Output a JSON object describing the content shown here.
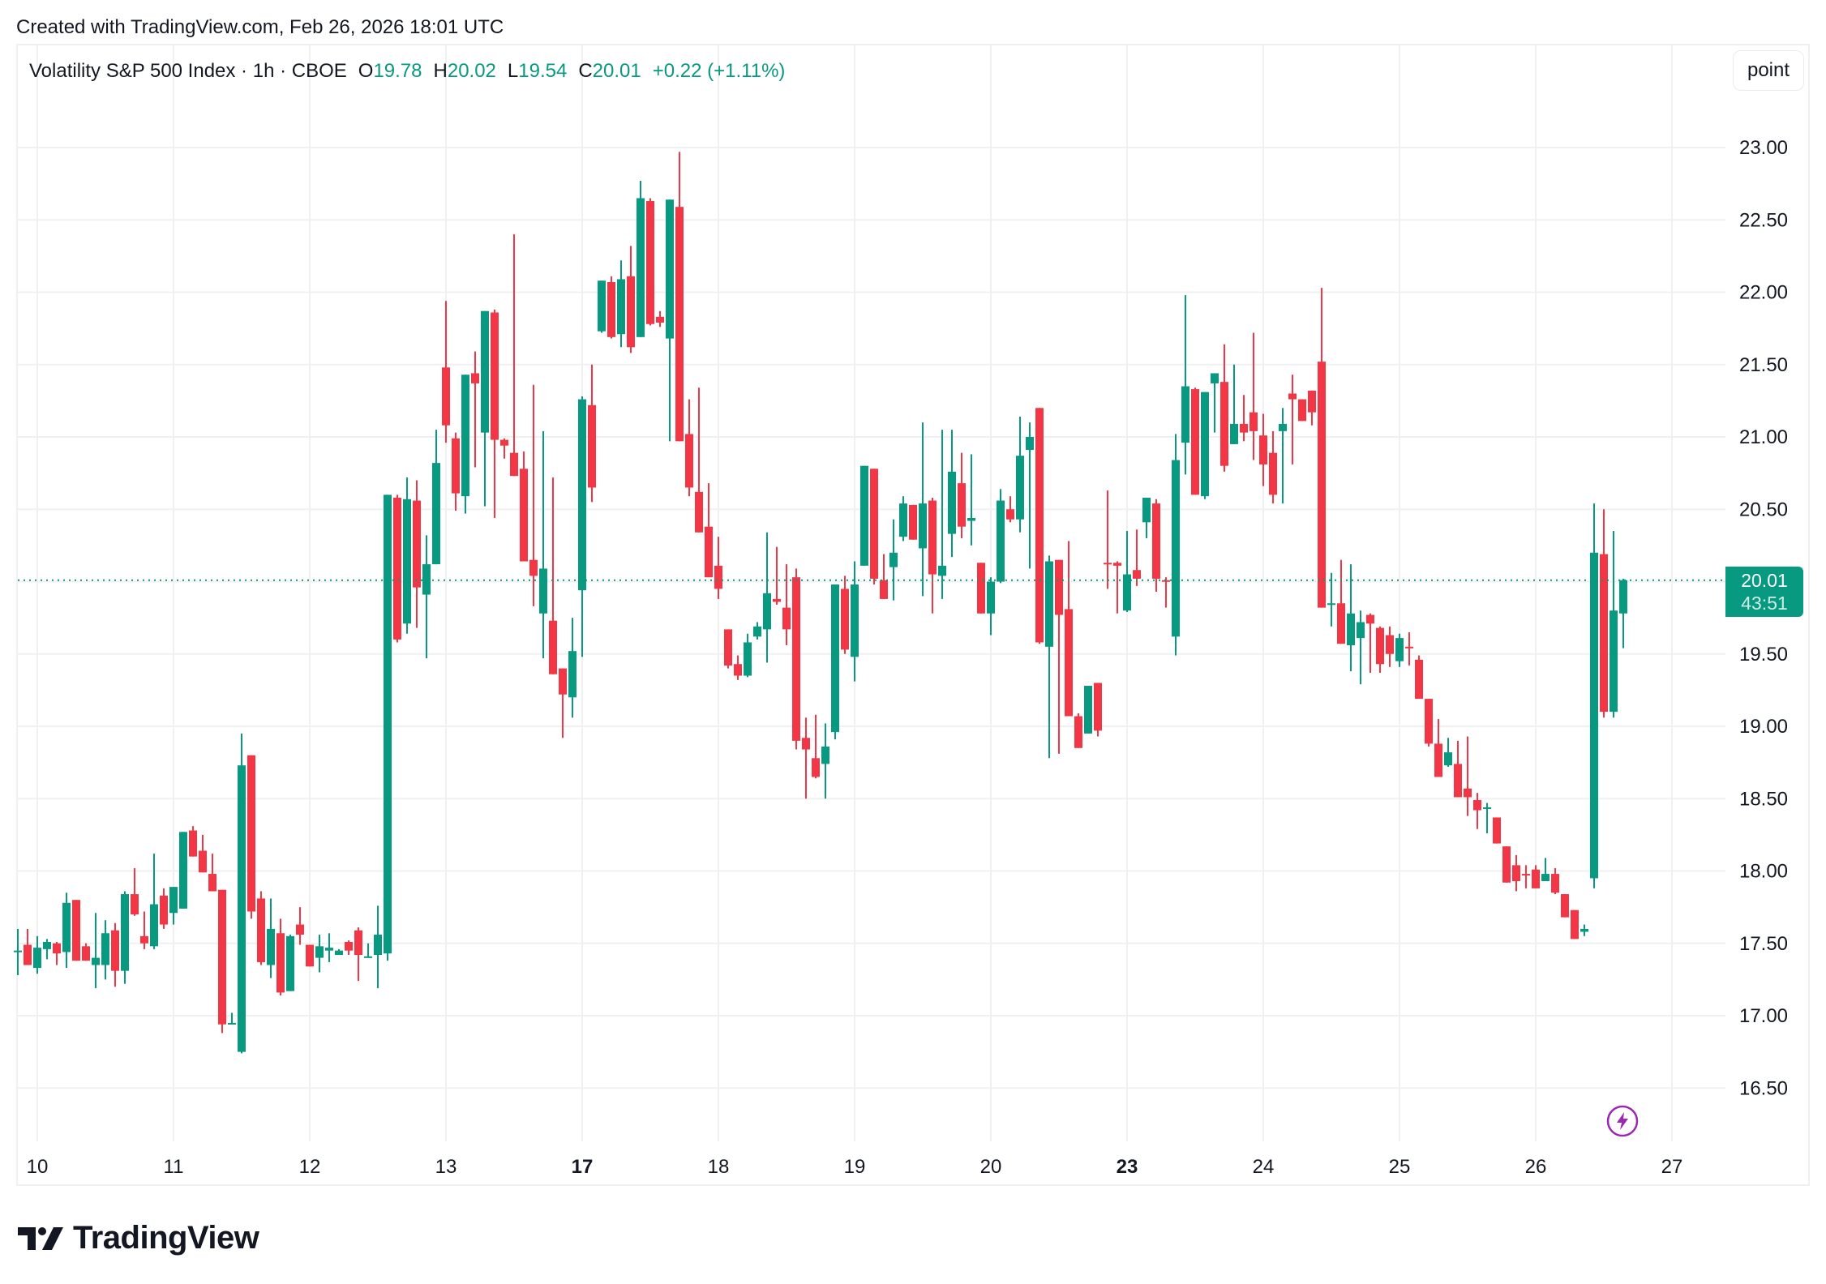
{
  "header": {
    "created_text": "Created with TradingView.com, Feb 26, 2026 18:01 UTC"
  },
  "legend": {
    "symbol": "Volatility S&P 500 Index · 1h · CBOE",
    "open_label": "O",
    "open": "19.78",
    "high_label": "H",
    "high": "20.02",
    "low_label": "L",
    "low": "19.54",
    "close_label": "C",
    "close": "20.01",
    "change": "+0.22 (+1.11%)"
  },
  "unit_button": "point",
  "last_price": {
    "price": "20.01",
    "countdown": "43:51"
  },
  "colors": {
    "up": "#089981",
    "down": "#f23645",
    "grid": "#f0f0f0",
    "text": "#131722",
    "event": "#9c27b0"
  },
  "brand": {
    "name": "TradingView"
  },
  "chart_data": {
    "type": "candlestick",
    "title": "Volatility S&P 500 Index · 1h · CBOE",
    "xlabel": "",
    "ylabel": "",
    "ylim": [
      16.2,
      23.4
    ],
    "y_ticks": [
      "23.00",
      "22.50",
      "22.00",
      "21.50",
      "21.00",
      "20.50",
      "20.00",
      "19.50",
      "19.00",
      "18.50",
      "18.00",
      "17.50",
      "17.00",
      "16.50"
    ],
    "x_ticks": [
      {
        "label": "10",
        "slot": 1,
        "bold": false
      },
      {
        "label": "11",
        "slot": 15,
        "bold": false
      },
      {
        "label": "12",
        "slot": 29,
        "bold": false
      },
      {
        "label": "13",
        "slot": 43,
        "bold": false
      },
      {
        "label": "17",
        "slot": 57,
        "bold": true
      },
      {
        "label": "18",
        "slot": 71,
        "bold": false
      },
      {
        "label": "19",
        "slot": 85,
        "bold": false
      },
      {
        "label": "20",
        "slot": 99,
        "bold": false
      },
      {
        "label": "23",
        "slot": 113,
        "bold": true
      },
      {
        "label": "24",
        "slot": 127,
        "bold": false
      },
      {
        "label": "25",
        "slot": 141,
        "bold": false
      },
      {
        "label": "26",
        "slot": 155,
        "bold": false
      },
      {
        "label": "27",
        "slot": 169,
        "bold": false
      }
    ],
    "last_price_line": 20.01,
    "candles": [
      [
        0,
        17.44,
        17.6,
        17.28,
        17.45
      ],
      [
        1,
        17.49,
        17.6,
        17.36,
        17.35
      ],
      [
        2,
        17.33,
        17.55,
        17.29,
        17.47
      ],
      [
        3,
        17.46,
        17.53,
        17.39,
        17.51
      ],
      [
        4,
        17.5,
        17.51,
        17.35,
        17.43
      ],
      [
        5,
        17.44,
        17.85,
        17.33,
        17.78
      ],
      [
        6,
        17.8,
        17.8,
        17.38,
        17.38
      ],
      [
        7,
        17.48,
        17.5,
        17.38,
        17.38
      ],
      [
        8,
        17.35,
        17.71,
        17.19,
        17.4
      ],
      [
        9,
        17.35,
        17.66,
        17.25,
        17.57
      ],
      [
        10,
        17.59,
        17.64,
        17.2,
        17.31
      ],
      [
        11,
        17.31,
        17.86,
        17.22,
        17.84
      ],
      [
        12,
        17.84,
        18.02,
        17.69,
        17.7
      ],
      [
        13,
        17.55,
        17.72,
        17.46,
        17.5
      ],
      [
        14,
        17.48,
        18.12,
        17.46,
        17.77
      ],
      [
        15,
        17.83,
        17.88,
        17.6,
        17.63
      ],
      [
        16,
        17.71,
        17.89,
        17.63,
        17.89
      ],
      [
        17,
        17.74,
        18.22,
        17.77,
        18.27
      ],
      [
        18,
        18.28,
        18.31,
        18.1,
        18.1
      ],
      [
        19,
        18.14,
        18.25,
        17.99,
        17.99
      ],
      [
        20,
        17.98,
        18.12,
        17.86,
        17.86
      ],
      [
        21,
        17.87,
        17.87,
        16.88,
        16.94
      ],
      [
        22,
        16.94,
        17.02,
        16.94,
        16.95
      ],
      [
        23,
        16.75,
        18.95,
        16.74,
        18.73
      ],
      [
        24,
        18.8,
        18.8,
        17.67,
        17.72
      ],
      [
        25,
        17.81,
        17.86,
        17.35,
        17.37
      ],
      [
        26,
        17.35,
        17.81,
        17.26,
        17.6
      ],
      [
        27,
        17.57,
        17.67,
        17.14,
        17.16
      ],
      [
        28,
        17.17,
        17.56,
        17.17,
        17.55
      ],
      [
        29,
        17.63,
        17.75,
        17.49,
        17.56
      ],
      [
        30,
        17.49,
        17.49,
        17.36,
        17.34
      ],
      [
        31,
        17.4,
        17.56,
        17.3,
        17.48
      ],
      [
        32,
        17.45,
        17.57,
        17.37,
        17.47
      ],
      [
        33,
        17.42,
        17.46,
        17.45,
        17.45
      ],
      [
        34,
        17.51,
        17.52,
        17.42,
        17.45
      ],
      [
        35,
        17.59,
        17.61,
        17.24,
        17.42
      ],
      [
        36,
        17.4,
        17.5,
        17.41,
        17.41
      ],
      [
        37,
        17.42,
        17.76,
        17.19,
        17.56
      ],
      [
        38,
        17.43,
        20.56,
        17.38,
        20.6
      ],
      [
        39,
        20.58,
        20.6,
        19.58,
        19.6
      ],
      [
        40,
        19.71,
        20.72,
        19.64,
        20.57
      ],
      [
        41,
        20.56,
        20.7,
        19.68,
        19.96
      ],
      [
        42,
        19.91,
        20.32,
        19.47,
        20.12
      ],
      [
        43,
        20.12,
        21.05,
        20.12,
        20.82
      ],
      [
        44,
        21.48,
        21.94,
        20.96,
        21.08
      ],
      [
        45,
        20.99,
        21.03,
        20.49,
        20.61
      ],
      [
        46,
        20.59,
        21.28,
        20.47,
        21.43
      ],
      [
        47,
        21.44,
        21.59,
        20.79,
        21.37
      ],
      [
        48,
        21.03,
        21.87,
        20.52,
        21.87
      ],
      [
        49,
        21.86,
        21.88,
        20.44,
        20.98
      ],
      [
        50,
        20.98,
        20.99,
        20.85,
        20.94
      ],
      [
        51,
        20.89,
        22.4,
        20.79,
        20.73
      ],
      [
        52,
        20.78,
        20.9,
        20.56,
        20.14
      ],
      [
        53,
        20.15,
        21.36,
        19.83,
        20.04
      ],
      [
        54,
        19.78,
        21.04,
        19.47,
        20.09
      ],
      [
        55,
        19.73,
        20.72,
        19.47,
        19.36
      ],
      [
        56,
        19.4,
        19.4,
        18.92,
        19.22
      ],
      [
        57,
        19.2,
        19.75,
        19.06,
        19.52
      ],
      [
        58,
        19.94,
        21.28,
        19.48,
        21.26
      ],
      [
        59,
        21.22,
        21.5,
        20.55,
        20.65
      ],
      [
        60,
        21.73,
        22.06,
        21.72,
        22.08
      ],
      [
        61,
        22.07,
        22.11,
        21.68,
        21.69
      ],
      [
        62,
        21.71,
        22.22,
        21.62,
        22.09
      ],
      [
        63,
        22.11,
        22.32,
        21.58,
        21.62
      ],
      [
        64,
        21.69,
        22.77,
        21.69,
        22.65
      ],
      [
        65,
        22.63,
        22.65,
        21.77,
        21.78
      ],
      [
        66,
        21.83,
        21.87,
        21.76,
        21.79
      ],
      [
        67,
        21.68,
        22.5,
        20.97,
        22.64
      ],
      [
        68,
        22.59,
        22.97,
        20.98,
        20.97
      ],
      [
        69,
        21.02,
        21.26,
        20.59,
        20.65
      ],
      [
        70,
        20.62,
        21.34,
        20.36,
        20.34
      ],
      [
        71,
        20.38,
        20.68,
        20.08,
        20.03
      ],
      [
        72,
        20.11,
        20.31,
        19.88,
        19.95
      ],
      [
        73,
        19.67,
        19.67,
        19.4,
        19.42
      ],
      [
        74,
        19.43,
        19.49,
        19.32,
        19.35
      ],
      [
        75,
        19.35,
        19.64,
        19.34,
        19.58
      ],
      [
        76,
        19.62,
        19.72,
        19.6,
        19.69
      ],
      [
        77,
        19.67,
        20.34,
        19.44,
        19.92
      ],
      [
        78,
        19.88,
        20.24,
        19.84,
        19.86
      ],
      [
        79,
        19.82,
        20.12,
        19.56,
        19.67
      ],
      [
        80,
        20.03,
        20.09,
        18.84,
        18.9
      ],
      [
        81,
        18.92,
        19.06,
        18.5,
        18.84
      ],
      [
        82,
        18.78,
        19.08,
        18.64,
        18.65
      ],
      [
        83,
        18.74,
        19.02,
        18.5,
        18.86
      ],
      [
        84,
        18.96,
        19.87,
        18.91,
        19.98
      ],
      [
        85,
        19.95,
        20.04,
        19.5,
        19.53
      ],
      [
        86,
        19.48,
        20.14,
        19.31,
        19.98
      ],
      [
        87,
        20.11,
        20.76,
        20.11,
        20.8
      ],
      [
        88,
        20.78,
        20.78,
        19.98,
        20.02
      ],
      [
        89,
        20.01,
        20.19,
        19.89,
        19.88
      ],
      [
        90,
        20.1,
        20.43,
        19.87,
        20.2
      ],
      [
        91,
        20.31,
        20.59,
        20.28,
        20.54
      ],
      [
        92,
        20.53,
        20.53,
        20.29,
        20.29
      ],
      [
        93,
        20.23,
        21.1,
        19.9,
        20.54
      ],
      [
        94,
        20.56,
        20.58,
        19.78,
        20.05
      ],
      [
        95,
        20.04,
        21.05,
        19.88,
        20.11
      ],
      [
        96,
        20.33,
        21.05,
        20.17,
        20.76
      ],
      [
        97,
        20.68,
        20.89,
        20.3,
        20.38
      ],
      [
        98,
        20.42,
        20.88,
        20.25,
        20.44
      ],
      [
        99,
        20.13,
        20.03,
        19.78,
        19.78
      ],
      [
        100,
        19.78,
        20.03,
        19.63,
        20.0
      ],
      [
        101,
        20.0,
        20.64,
        19.99,
        20.56
      ],
      [
        102,
        20.5,
        20.59,
        20.41,
        20.43
      ],
      [
        103,
        20.43,
        21.14,
        20.34,
        20.87
      ],
      [
        104,
        20.91,
        21.1,
        20.09,
        21.0
      ],
      [
        105,
        21.2,
        21.2,
        19.57,
        19.58
      ],
      [
        106,
        19.55,
        20.18,
        18.78,
        20.14
      ],
      [
        107,
        20.15,
        20.09,
        18.81,
        19.77
      ],
      [
        108,
        19.81,
        20.28,
        19.1,
        19.07
      ],
      [
        109,
        19.07,
        19.09,
        18.85,
        18.85
      ],
      [
        110,
        18.95,
        19.1,
        19.42,
        19.28
      ],
      [
        111,
        19.3,
        19.29,
        18.93,
        18.97
      ],
      [
        112,
        20.13,
        20.63,
        19.95,
        20.12
      ],
      [
        113,
        20.13,
        20.14,
        19.78,
        20.11
      ],
      [
        114,
        19.8,
        20.35,
        19.79,
        20.05
      ],
      [
        115,
        20.08,
        20.36,
        19.97,
        20.02
      ],
      [
        116,
        20.41,
        20.58,
        20.3,
        20.58
      ],
      [
        117,
        20.54,
        20.57,
        19.93,
        20.02
      ],
      [
        118,
        20.01,
        20.03,
        19.82,
        20.0
      ],
      [
        119,
        19.62,
        21.02,
        19.49,
        20.84
      ],
      [
        120,
        20.96,
        21.98,
        20.74,
        21.35
      ],
      [
        121,
        21.33,
        21.34,
        20.62,
        20.6
      ],
      [
        122,
        20.59,
        21.23,
        20.57,
        21.31
      ],
      [
        123,
        21.37,
        21.44,
        21.03,
        21.44
      ],
      [
        124,
        21.38,
        21.64,
        20.76,
        20.8
      ],
      [
        125,
        20.95,
        21.5,
        20.97,
        21.09
      ],
      [
        126,
        21.09,
        21.29,
        20.97,
        21.03
      ],
      [
        127,
        21.17,
        21.72,
        20.84,
        21.04
      ],
      [
        128,
        21.01,
        21.16,
        20.66,
        20.81
      ],
      [
        129,
        20.89,
        21.04,
        20.54,
        20.6
      ],
      [
        130,
        21.04,
        21.2,
        20.54,
        21.09
      ],
      [
        131,
        21.3,
        21.43,
        20.81,
        21.26
      ],
      [
        132,
        21.26,
        21.26,
        21.11,
        21.11
      ],
      [
        133,
        21.32,
        21.32,
        21.08,
        21.17
      ],
      [
        134,
        21.52,
        22.03,
        20.03,
        19.82
      ],
      [
        135,
        19.85,
        20.06,
        19.69,
        19.85
      ],
      [
        136,
        19.85,
        20.15,
        19.61,
        19.57
      ],
      [
        137,
        19.56,
        20.12,
        19.38,
        19.78
      ],
      [
        138,
        19.61,
        19.8,
        19.29,
        19.72
      ],
      [
        139,
        19.77,
        19.78,
        19.37,
        19.71
      ],
      [
        140,
        19.68,
        19.69,
        19.37,
        19.43
      ],
      [
        141,
        19.63,
        19.69,
        19.41,
        19.5
      ],
      [
        142,
        19.45,
        19.64,
        19.41,
        19.61
      ],
      [
        143,
        19.55,
        19.65,
        19.42,
        19.54
      ],
      [
        144,
        19.46,
        19.49,
        19.39,
        19.19
      ],
      [
        145,
        19.19,
        19.19,
        18.86,
        18.88
      ],
      [
        146,
        18.88,
        19.05,
        18.72,
        18.65
      ],
      [
        147,
        18.73,
        18.92,
        18.72,
        18.82
      ],
      [
        148,
        18.74,
        18.9,
        18.53,
        18.51
      ],
      [
        149,
        18.57,
        18.93,
        18.38,
        18.51
      ],
      [
        150,
        18.49,
        18.54,
        18.29,
        18.42
      ],
      [
        151,
        18.44,
        18.47,
        18.26,
        18.44
      ],
      [
        152,
        18.37,
        18.36,
        18.2,
        18.19
      ],
      [
        153,
        18.17,
        18.05,
        17.93,
        17.92
      ],
      [
        154,
        18.04,
        18.11,
        17.86,
        17.93
      ],
      [
        155,
        17.98,
        18.04,
        17.88,
        17.97
      ],
      [
        156,
        18.01,
        18.04,
        17.89,
        17.88
      ],
      [
        157,
        17.93,
        18.09,
        17.93,
        17.98
      ],
      [
        158,
        17.98,
        18.02,
        17.84,
        17.85
      ],
      [
        159,
        17.84,
        17.81,
        17.68,
        17.68
      ],
      [
        160,
        17.73,
        17.73,
        17.53,
        17.53
      ],
      [
        161,
        17.58,
        17.63,
        17.55,
        17.6
      ],
      [
        162,
        17.95,
        20.54,
        17.88,
        20.2
      ],
      [
        163,
        20.19,
        20.5,
        19.06,
        19.1
      ],
      [
        164,
        19.1,
        20.35,
        19.06,
        19.8
      ],
      [
        165,
        19.78,
        20.02,
        19.54,
        20.01
      ]
    ]
  }
}
